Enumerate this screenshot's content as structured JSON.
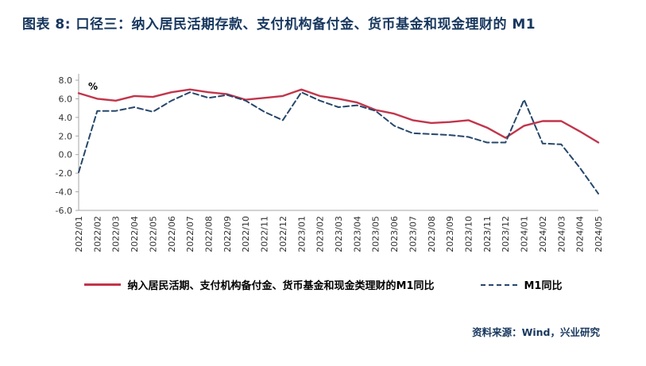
{
  "page": {
    "title": "图表 8:  口径三：纳入居民活期存款、支付机构备付金、货币基金和现金理财的 M1",
    "source": "资料来源：Wind，兴业研究"
  },
  "colors": {
    "title_navy": "#17375E",
    "axis_gray": "#A6A6A6",
    "series_red": "#C2354B",
    "series_navy": "#26476B"
  },
  "chart_data": {
    "type": "line",
    "title": "口径三：纳入居民活期存款、支付机构备付金、货币基金和现金理财的 M1",
    "percent_label": "%",
    "grid": false,
    "legend_position": "bottom",
    "ylim": [
      -6,
      8
    ],
    "yticks": [
      8,
      6,
      4,
      2,
      0,
      -2,
      -4,
      -6
    ],
    "x": [
      "2022/01",
      "2022/02",
      "2022/03",
      "2022/04",
      "2022/05",
      "2022/06",
      "2022/07",
      "2022/08",
      "2022/09",
      "2022/10",
      "2022/11",
      "2022/12",
      "2023/01",
      "2023/02",
      "2023/03",
      "2023/04",
      "2023/05",
      "2023/06",
      "2023/07",
      "2023/08",
      "2023/09",
      "2023/10",
      "2023/11",
      "2023/12",
      "2024/01",
      "2024/02",
      "2024/03",
      "2024/04",
      "2024/05"
    ],
    "series": [
      {
        "name": "纳入居民活期、支付机构备付金、货币基金和现金类理财的M1同比",
        "color": "#C2354B",
        "style": "solid",
        "values": [
          6.6,
          6.0,
          5.8,
          6.3,
          6.2,
          6.7,
          7.0,
          6.7,
          6.5,
          5.9,
          6.1,
          6.3,
          7.0,
          6.3,
          6.0,
          5.6,
          4.8,
          4.4,
          3.7,
          3.4,
          3.5,
          3.7,
          2.9,
          1.8,
          3.1,
          3.6,
          3.6,
          2.5,
          1.3
        ]
      },
      {
        "name": "M1同比",
        "color": "#26476B",
        "style": "dashed",
        "values": [
          -1.9,
          4.7,
          4.7,
          5.1,
          4.6,
          5.8,
          6.7,
          6.1,
          6.4,
          5.8,
          4.6,
          3.7,
          6.7,
          5.8,
          5.1,
          5.3,
          4.7,
          3.1,
          2.3,
          2.2,
          2.1,
          1.9,
          1.3,
          1.3,
          5.9,
          1.2,
          1.1,
          -1.4,
          -4.2
        ]
      }
    ]
  }
}
